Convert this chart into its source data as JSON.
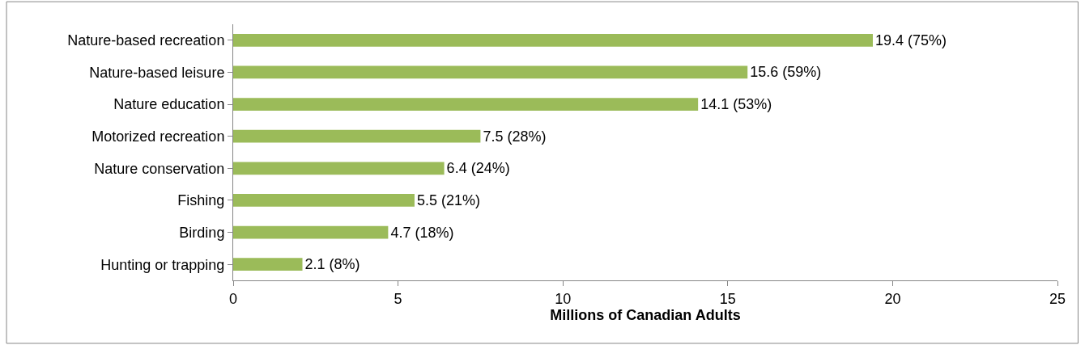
{
  "chart_data": {
    "type": "bar",
    "orientation": "horizontal",
    "xlabel": "Millions of Canadian Adults",
    "categories": [
      "Nature-based recreation",
      "Nature-based leisure",
      "Nature education",
      "Motorized recreation",
      "Nature conservation",
      "Fishing",
      "Birding",
      "Hunting or trapping"
    ],
    "values": [
      19.4,
      15.6,
      14.1,
      7.5,
      6.4,
      5.5,
      4.7,
      2.1
    ],
    "value_labels": [
      "19.4 (75%)",
      "15.6 (59%)",
      "14.1 (53%)",
      "7.5 (28%)",
      "6.4 (24%)",
      "5.5 (21%)",
      "4.7 (18%)",
      "2.1 (8%)"
    ],
    "color": "#9bbb59",
    "xlim": [
      0,
      25
    ],
    "xticks": [
      0,
      5,
      10,
      15,
      20,
      25
    ]
  }
}
